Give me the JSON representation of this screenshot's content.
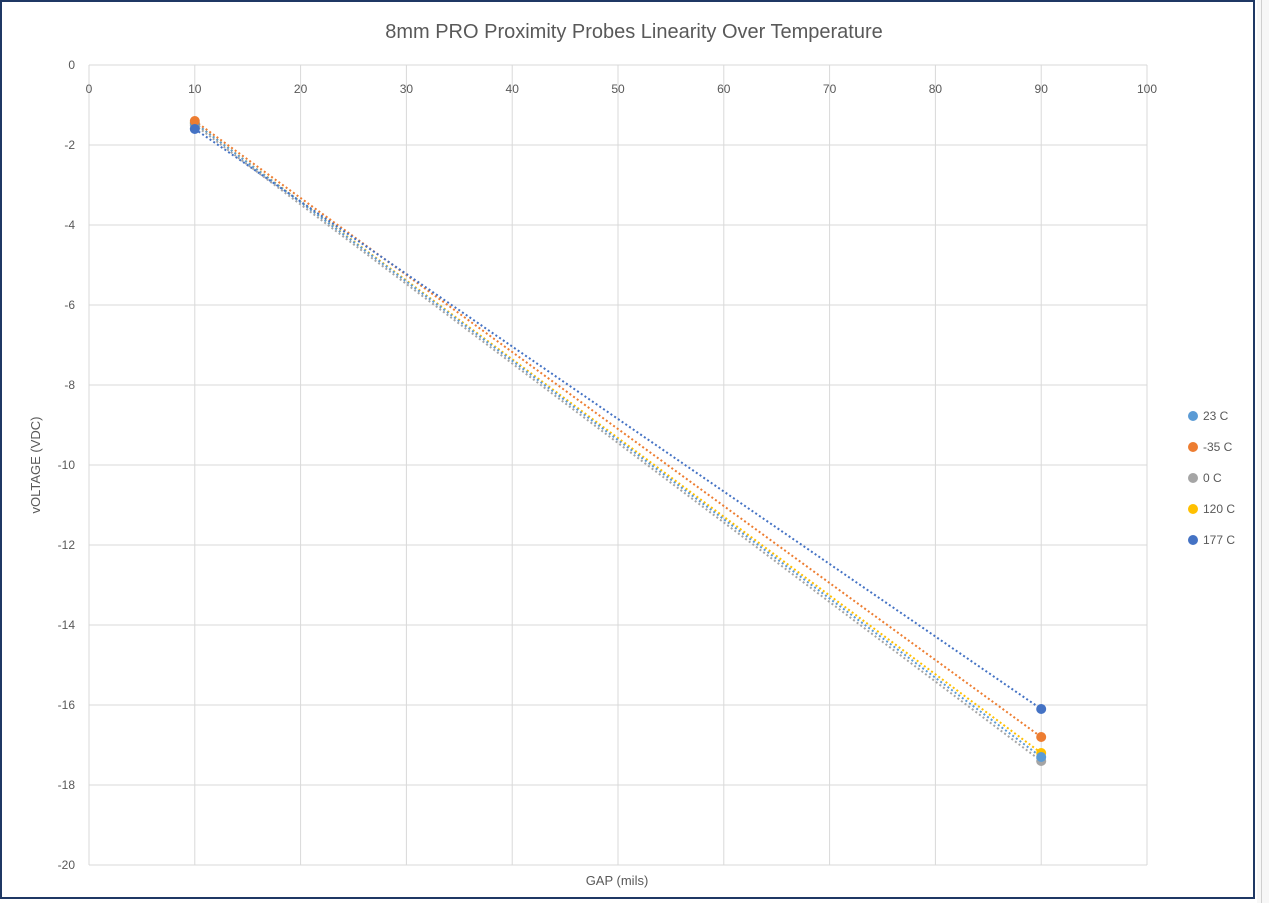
{
  "chart_data": {
    "type": "scatter",
    "title": "8mm PRO Proximity Probes Linearity Over Temperature",
    "xlabel": "GAP (mils)",
    "ylabel": "vOLTAGE (VDC)",
    "xlim": [
      0,
      100
    ],
    "ylim": [
      -20,
      0
    ],
    "x_ticks": [
      0,
      10,
      20,
      30,
      40,
      50,
      60,
      70,
      80,
      90,
      100
    ],
    "y_ticks": [
      0,
      -2,
      -4,
      -6,
      -8,
      -10,
      -12,
      -14,
      -16,
      -18,
      -20
    ],
    "x_tick_position": "top",
    "grid": true,
    "legend_position": "right",
    "trendline": "linear, dotted",
    "series": [
      {
        "name": "23 C",
        "color": "#5b9bd5",
        "x": [
          10,
          90
        ],
        "y": [
          -1.45,
          -17.3
        ]
      },
      {
        "name": "-35 C",
        "color": "#ed7d31",
        "x": [
          10,
          90
        ],
        "y": [
          -1.4,
          -16.8
        ]
      },
      {
        "name": "0 C",
        "color": "#a5a5a5",
        "x": [
          10,
          90
        ],
        "y": [
          -1.5,
          -17.4
        ]
      },
      {
        "name": "120 C",
        "color": "#ffc000",
        "x": [
          10,
          90
        ],
        "y": [
          -1.45,
          -17.2
        ]
      },
      {
        "name": "177 C",
        "color": "#4472c4",
        "x": [
          10,
          90
        ],
        "y": [
          -1.6,
          -16.1
        ]
      }
    ]
  }
}
